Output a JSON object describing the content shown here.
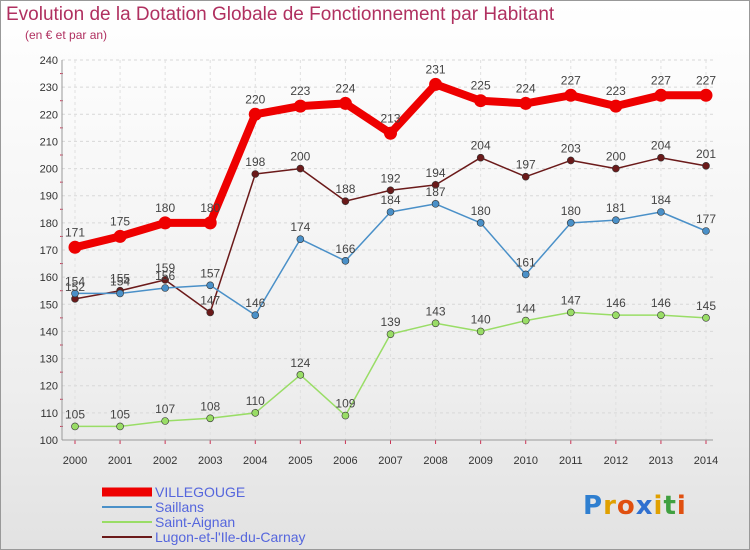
{
  "header": {
    "title": "Evolution de la Dotation Globale de Fonctionnement par Habitant",
    "subtitle": "(en € et par an)"
  },
  "logo": {
    "text": "Proxiti"
  },
  "chart_data": {
    "type": "line",
    "title": "Evolution de la Dotation Globale de Fonctionnement par Habitant",
    "ylabel": "(en € et par an)",
    "xlabel": "",
    "ylim": [
      100,
      240
    ],
    "yticks": [
      100,
      110,
      120,
      130,
      140,
      150,
      160,
      170,
      180,
      190,
      200,
      210,
      220,
      230,
      240
    ],
    "grid": true,
    "legend": "bottom-left",
    "categories": [
      "2000",
      "2001",
      "2002",
      "2003",
      "2004",
      "2005",
      "2006",
      "2007",
      "2008",
      "2009",
      "2010",
      "2011",
      "2012",
      "2013",
      "2014"
    ],
    "series": [
      {
        "name": "VILLEGOUGE",
        "color": "#ee0000",
        "values": [
          171,
          175,
          180,
          180,
          220,
          223,
          224,
          213,
          231,
          225,
          224,
          227,
          223,
          227,
          227
        ]
      },
      {
        "name": "Saillans",
        "color": "#4a90c8",
        "values": [
          154,
          154,
          156,
          157,
          146,
          174,
          166,
          184,
          187,
          180,
          161,
          180,
          181,
          184,
          177
        ]
      },
      {
        "name": "Saint-Aignan",
        "color": "#99dd66",
        "values": [
          105,
          105,
          107,
          108,
          110,
          124,
          109,
          139,
          143,
          140,
          144,
          147,
          146,
          146,
          145
        ]
      },
      {
        "name": "Lugon-et-l'Ile-du-Carnay",
        "color": "#6b1a1a",
        "values": [
          152,
          155,
          159,
          147,
          198,
          200,
          188,
          192,
          194,
          204,
          197,
          203,
          200,
          204,
          201
        ]
      }
    ]
  }
}
